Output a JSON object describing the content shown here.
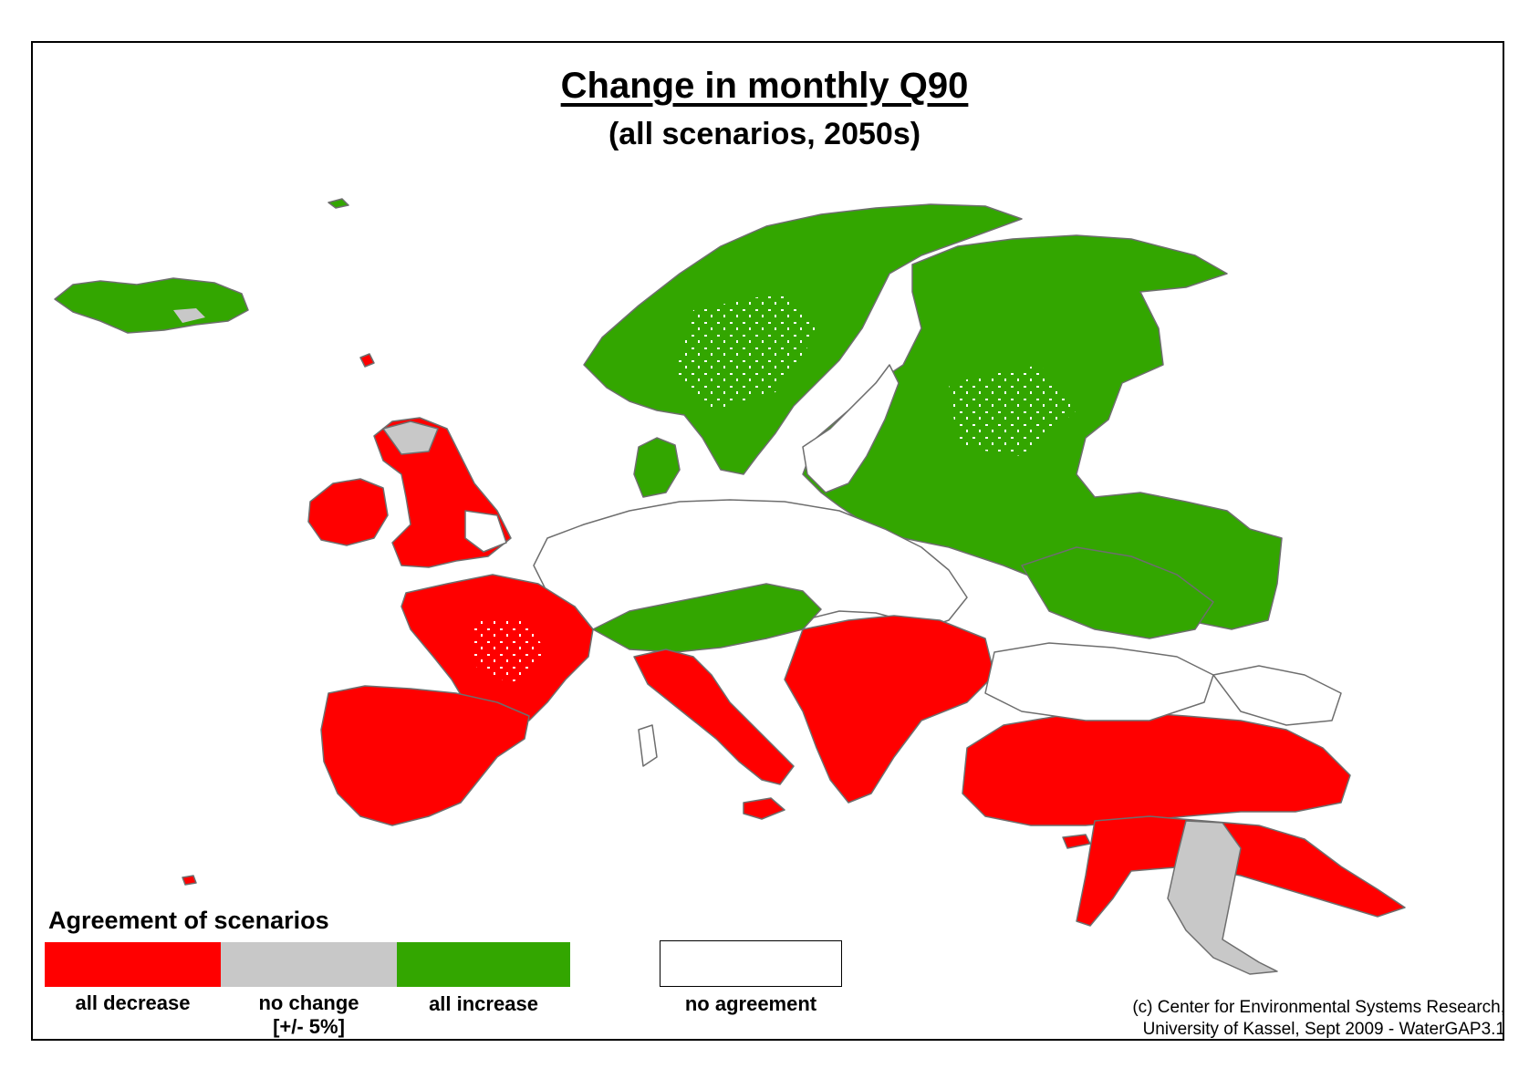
{
  "title": "Change in monthly Q90",
  "subtitle": "(all scenarios, 2050s)",
  "legend": {
    "title": "Agreement of scenarios",
    "items": [
      {
        "label": "all decrease",
        "color": "#ff0000"
      },
      {
        "label": "no change",
        "sublabel": "[+/- 5%]",
        "color": "#c8c8c8"
      },
      {
        "label": "all increase",
        "color": "#33a600"
      },
      {
        "label": "no agreement",
        "color": "#ffffff"
      }
    ]
  },
  "credit": {
    "line1": "(c) Center for Environmental Systems Research,",
    "line2": "University of Kassel, Sept 2009 - WaterGAP3.1"
  },
  "map": {
    "region": "Europe",
    "colors": {
      "decrease": "#ff0000",
      "no_change": "#c8c8c8",
      "increase": "#33a600",
      "border": "#6e6e6e"
    }
  }
}
